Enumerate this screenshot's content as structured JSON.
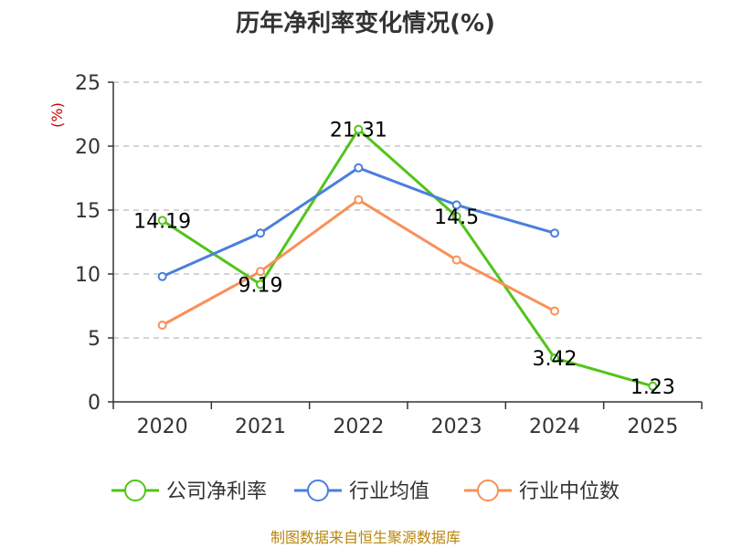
{
  "colors": {
    "series_green": "#52c41a",
    "series_blue": "#4a7fdd",
    "series_orange": "#f79159",
    "axis": "#333333",
    "grid": "#bbbbbb",
    "unit": "#cc0000",
    "footer": "#b8860b"
  },
  "chart_data": {
    "type": "line",
    "title": "历年净利率变化情况(%)",
    "ylabel": "(%)",
    "xlabel": "",
    "ylim": [
      0,
      25
    ],
    "yticks": [
      "0",
      "5",
      "10",
      "15",
      "20",
      "25"
    ],
    "categories": [
      "2020",
      "2021",
      "2022",
      "2023",
      "2024",
      "2025"
    ],
    "grid": "horizontal-dashed",
    "legend_position": "bottom",
    "series": [
      {
        "name": "公司净利率",
        "color": "#52c41a",
        "values": [
          14.19,
          9.19,
          21.31,
          14.5,
          3.42,
          1.23
        ],
        "labels": [
          "14.19",
          "9.19",
          "21.31",
          "14.5",
          "3.42",
          "1.23"
        ]
      },
      {
        "name": "行业均值",
        "color": "#4a7fdd",
        "values": [
          9.8,
          13.2,
          18.3,
          15.4,
          13.2,
          null
        ]
      },
      {
        "name": "行业中位数",
        "color": "#f79159",
        "values": [
          6.0,
          10.2,
          15.8,
          11.1,
          7.1,
          null
        ]
      }
    ]
  },
  "footer": "制图数据来自恒生聚源数据库"
}
